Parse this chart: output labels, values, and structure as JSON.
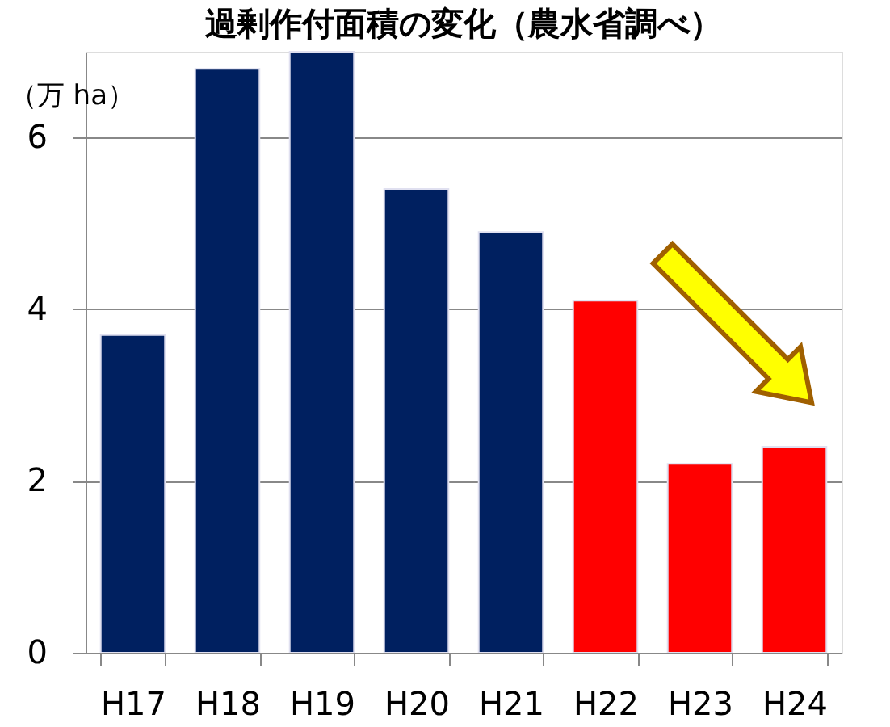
{
  "chart_data": {
    "type": "bar",
    "title": "過剰作付面積の変化（農水省調べ）",
    "ylabel": "（万 ha）",
    "categories": [
      "H17",
      "H18",
      "H19",
      "H20",
      "H21",
      "H22",
      "H23",
      "H24"
    ],
    "values": [
      3.7,
      6.8,
      7.0,
      5.4,
      4.9,
      4.1,
      2.2,
      2.4
    ],
    "colors": [
      "#002060",
      "#002060",
      "#002060",
      "#002060",
      "#002060",
      "#ff0000",
      "#ff0000",
      "#ff0000"
    ],
    "ylim": [
      0,
      7
    ],
    "yticks": [
      0,
      2,
      4,
      6
    ],
    "grid": "y"
  }
}
